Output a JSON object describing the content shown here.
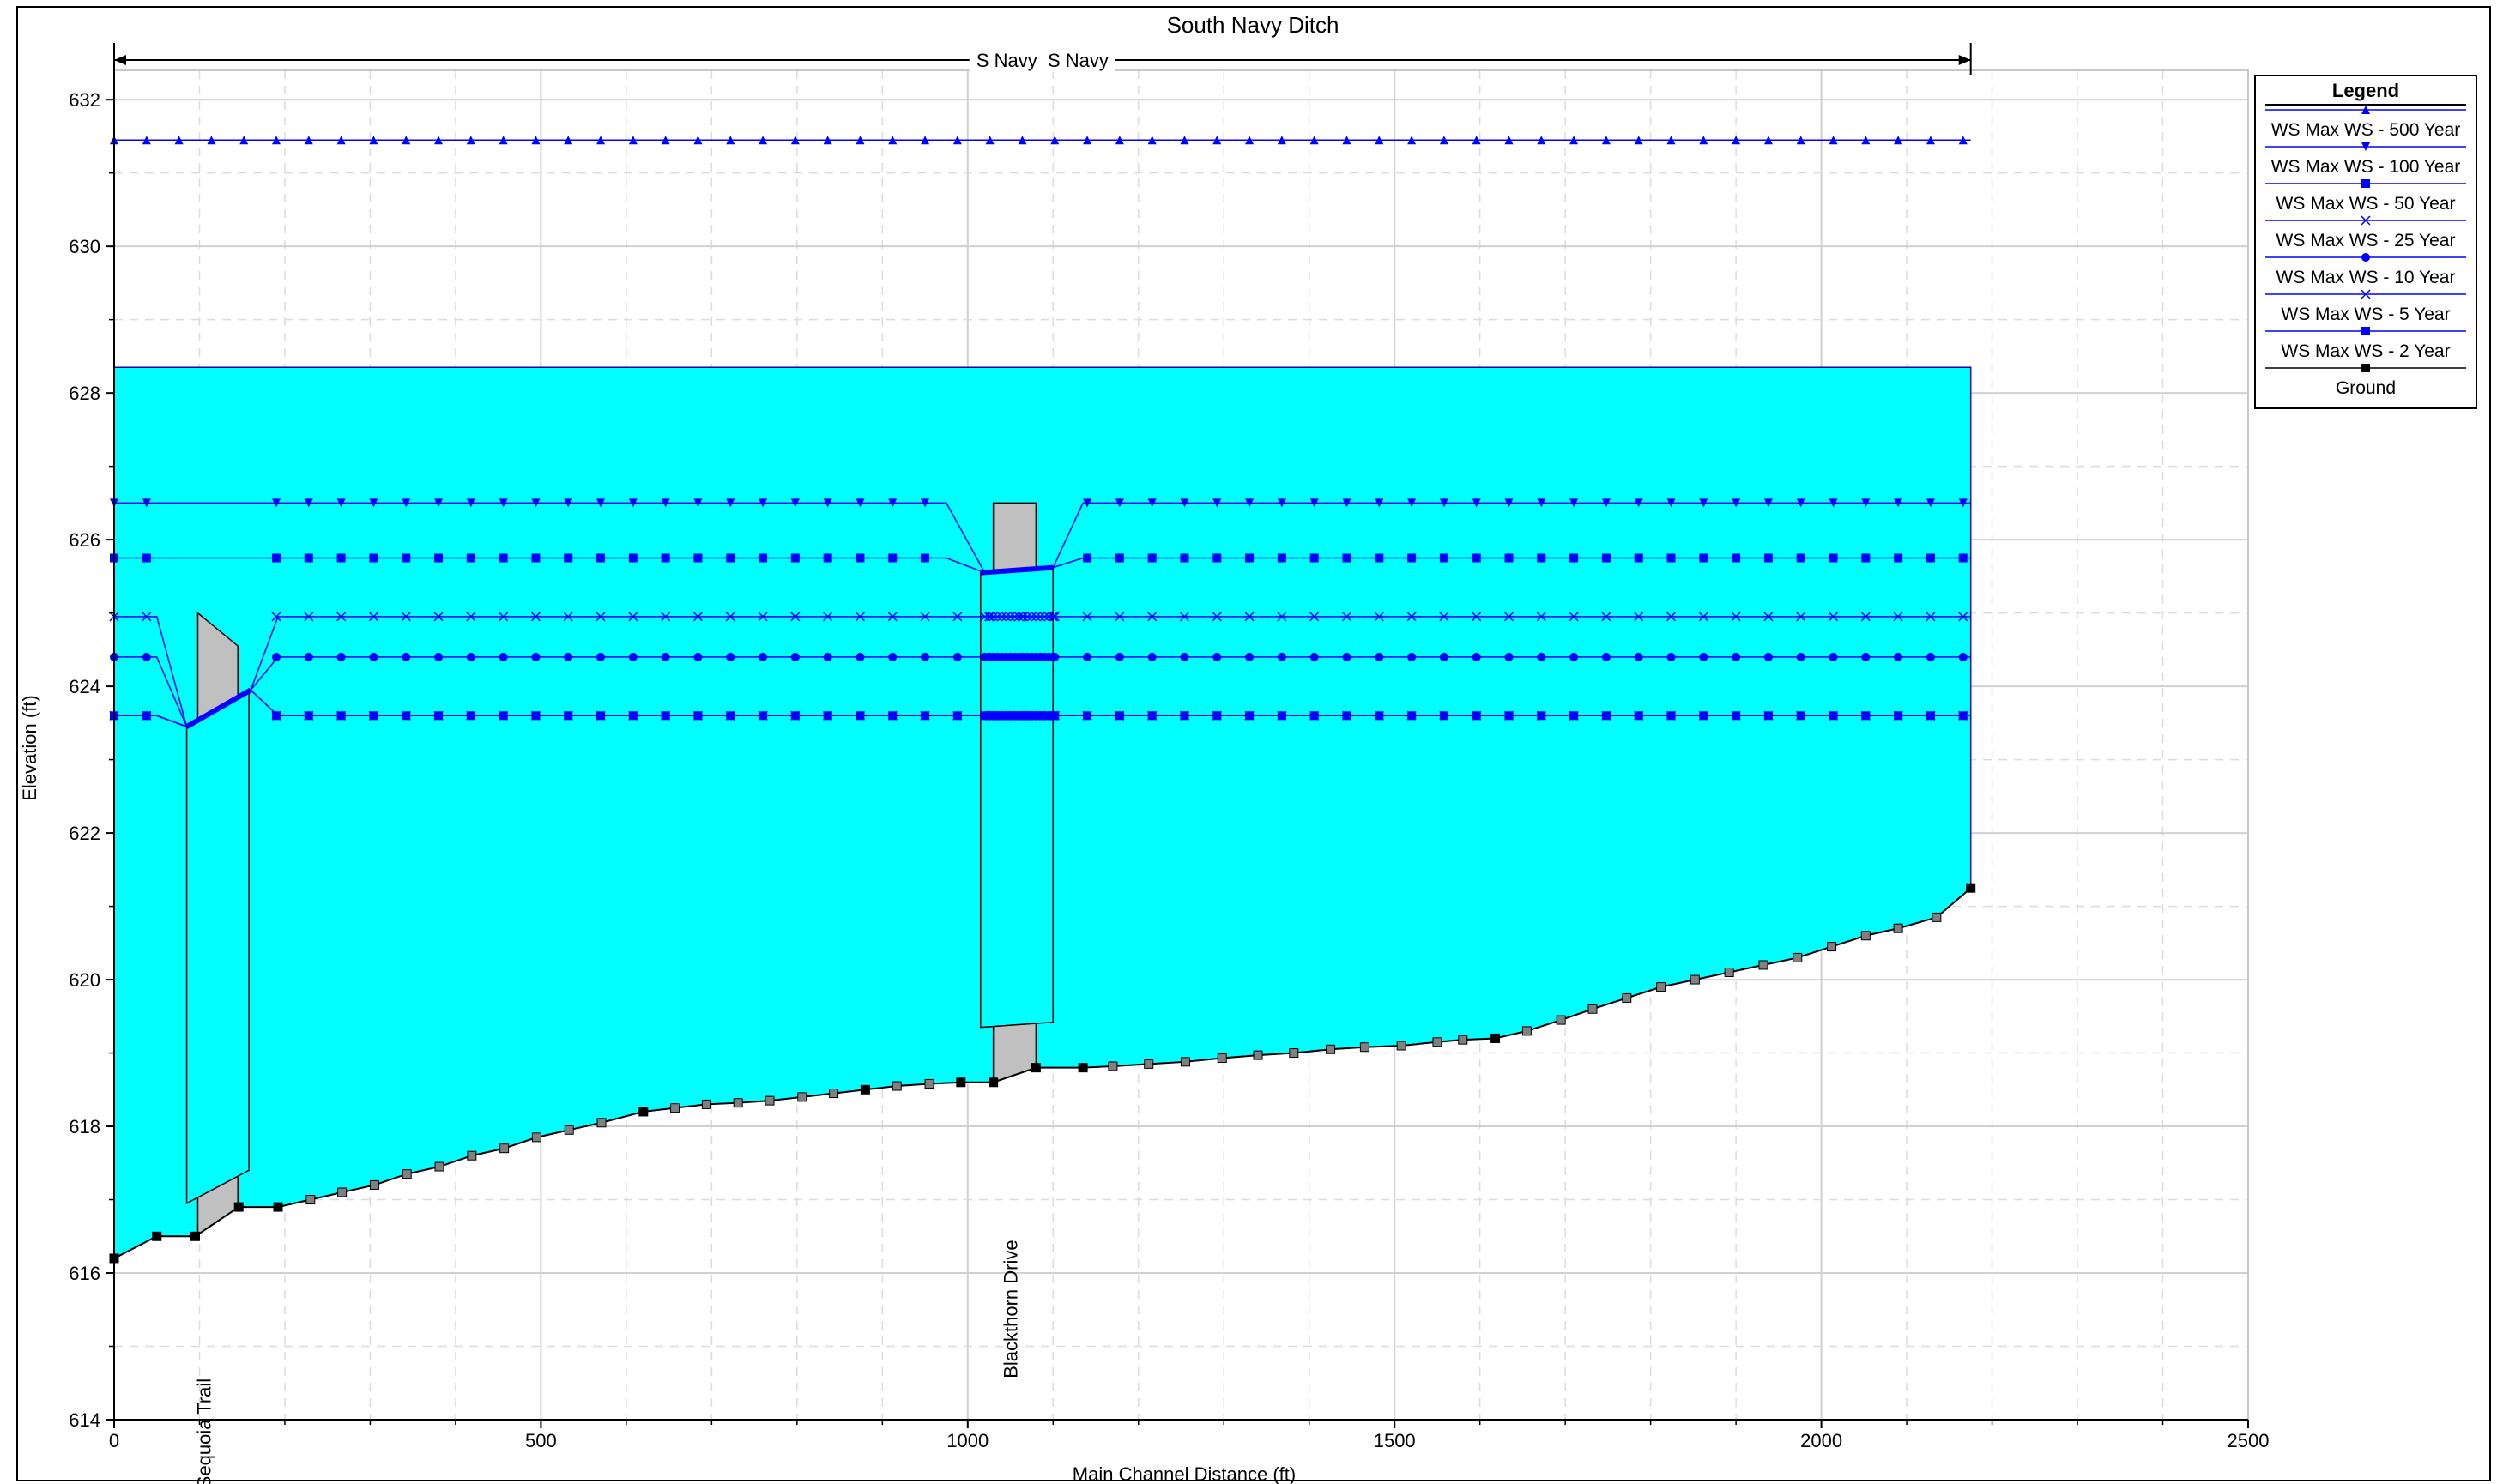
{
  "chart_data": {
    "type": "line",
    "title": "South Navy Ditch",
    "reach_label": "S Navy  S Navy",
    "xlabel": "Main Channel Distance (ft)",
    "ylabel": "Elevation (ft)",
    "xlim": [
      0,
      2500
    ],
    "ylim": [
      614,
      632.4
    ],
    "x_ticks": [
      "0",
      "500",
      "1000",
      "1500",
      "2000",
      "2500"
    ],
    "y_ticks": [
      "614",
      "616",
      "618",
      "620",
      "622",
      "624",
      "626",
      "628",
      "630",
      "632"
    ],
    "reach_extent": [
      0,
      2175
    ],
    "grid": true,
    "legend_title": "Legend",
    "legend_position": "top-right",
    "colors": {
      "water_fill": "#00ffff",
      "structure_fill": "#c0c0c0",
      "ws_line": "#0000ff",
      "ground_line": "#000000"
    },
    "series": [
      {
        "name": "WS  Max WS - 500 Year",
        "marker": "triangle-up"
      },
      {
        "name": "WS  Max WS - 100 Year",
        "marker": "triangle-down"
      },
      {
        "name": "WS  Max WS - 50 Year",
        "marker": "square"
      },
      {
        "name": "WS  Max WS - 25 Year",
        "marker": "x"
      },
      {
        "name": "WS  Max WS - 10 Year",
        "marker": "circle"
      },
      {
        "name": "WS  Max WS - 5 Year",
        "marker": "x-bar"
      },
      {
        "name": "WS  Max WS - 2 Year",
        "marker": "square"
      },
      {
        "name": "Ground",
        "marker": "square"
      }
    ],
    "ground": {
      "x": [
        0,
        50,
        95,
        146,
        192,
        230,
        267,
        305,
        343,
        381,
        419,
        457,
        495,
        533,
        571,
        620,
        657,
        694,
        731,
        768,
        806,
        843,
        880,
        917,
        955,
        992,
        1030,
        1080,
        1135,
        1170,
        1212,
        1255,
        1298,
        1340,
        1382,
        1425,
        1465,
        1508,
        1550,
        1580,
        1618,
        1655,
        1695,
        1732,
        1772,
        1812,
        1852,
        1892,
        1932,
        1972,
        2012,
        2052,
        2090,
        2135,
        2175
      ],
      "y": [
        616.2,
        616.5,
        616.5,
        616.9,
        616.9,
        617.0,
        617.1,
        617.2,
        617.35,
        617.45,
        617.6,
        617.7,
        617.85,
        617.95,
        618.05,
        618.2,
        618.25,
        618.3,
        618.32,
        618.35,
        618.4,
        618.45,
        618.5,
        618.55,
        618.58,
        618.6,
        618.6,
        618.8,
        618.8,
        618.82,
        618.85,
        618.88,
        618.93,
        618.97,
        619.0,
        619.05,
        619.08,
        619.1,
        619.15,
        619.18,
        619.2,
        619.3,
        619.45,
        619.6,
        619.75,
        619.9,
        620.0,
        620.1,
        620.2,
        620.3,
        620.45,
        620.6,
        620.7,
        620.85,
        621.25
      ]
    },
    "bridges": [
      {
        "label": "Sequoia Trail",
        "x_start": 95,
        "x_end": 160,
        "low_chord": 616.95,
        "high_chord": 625.0,
        "pier_top": 624.55
      },
      {
        "label": "Blackthorn Drive",
        "x_start": 1015,
        "x_end": 1100,
        "low_chord": 619.35,
        "high_chord": 626.5
      },
      {
        "label": "",
        "x_start": 1020,
        "x_end": 1080,
        "low_chord": 619.4,
        "high_chord": 626.5
      }
    ],
    "water_surface_fill_elevation": 628.35,
    "ws_levels": [
      {
        "name": "WS  Max WS - 500 Year",
        "elevation": 631.45
      },
      {
        "name": "WS  Max WS - 100 Year",
        "elevation": 626.5
      },
      {
        "name": "WS  Max WS - 50 Year",
        "elevation": 625.75
      },
      {
        "name": "WS  Max WS - 25 Year",
        "elevation": 624.95
      },
      {
        "name": "WS  Max WS - 10 Year",
        "elevation": 624.4
      },
      {
        "name": "WS  Max WS - 5 Year",
        "elevation": 623.6
      },
      {
        "name": "WS  Max WS - 2 Year",
        "elevation": 623.6
      }
    ]
  }
}
